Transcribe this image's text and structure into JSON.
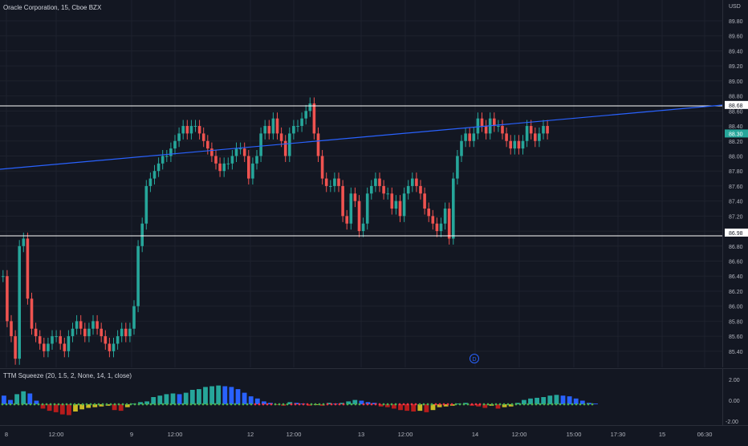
{
  "legend": {
    "title": "Oracle Corporation, 15, Cboe BZX"
  },
  "currency": "USD",
  "price_axis": {
    "labels": [
      "89.80",
      "89.60",
      "89.40",
      "89.20",
      "89.00",
      "88.80",
      "88.60",
      "88.40",
      "88.20",
      "88.00",
      "87.80",
      "87.60",
      "87.40",
      "87.20",
      "87.00",
      "86.80",
      "86.60",
      "86.40",
      "86.20",
      "86.00",
      "85.80",
      "85.60",
      "85.40"
    ],
    "badges": [
      {
        "text": "88.68",
        "kind": "line"
      },
      {
        "text": "88.30",
        "kind": "last"
      },
      {
        "text": "86.98",
        "kind": "line"
      }
    ]
  },
  "indicator": {
    "legend": "TTM Squeeze (20, 1.5, 2, None, 14, 1, close)",
    "axis_labels": [
      "2.00",
      "0.00",
      "-2.00"
    ]
  },
  "time_axis": {
    "labels": [
      "8",
      "12:00",
      "9",
      "12:00",
      "12",
      "12:00",
      "13",
      "12:00",
      "14",
      "12:00",
      "15:00",
      "17:30",
      "15",
      "06:30"
    ]
  },
  "marker": {
    "text": "D"
  },
  "colors": {
    "up": "#26a69a",
    "down": "#ef5350",
    "trendline": "#2962ff",
    "hline": "#ffffff",
    "squeeze_blue": "#2962ff",
    "squeeze_teal": "#26a69a",
    "squeeze_red": "#b71c1c",
    "squeeze_yellow": "#c9b925",
    "dot_green": "#4caf50",
    "dot_red": "#f23645"
  }
}
